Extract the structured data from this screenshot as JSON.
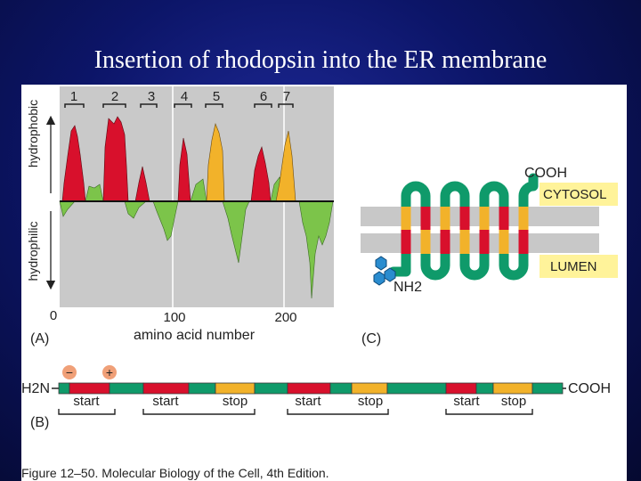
{
  "slide": {
    "title": "Insertion of rhodopsin into the ER membrane"
  },
  "panel_a": {
    "label": "(A)",
    "ylabel_top": "hydrophobic",
    "ylabel_bottom": "hydrophilic",
    "xlabel": "amino acid number",
    "x_ticks": [
      "0",
      "100",
      "200"
    ],
    "segment_labels": [
      "1",
      "2",
      "3",
      "4",
      "5",
      "6",
      "7"
    ]
  },
  "panel_b": {
    "label": "(B)",
    "left_terminus": "H2N",
    "right_terminus": "COOH",
    "minus": "−",
    "plus": "+",
    "bracket_labels": [
      {
        "left": "start",
        "right": ""
      },
      {
        "left": "start",
        "right": "stop"
      },
      {
        "left": "start",
        "right": "stop"
      },
      {
        "left": "start",
        "right": "stop"
      }
    ]
  },
  "panel_c": {
    "label": "(C)",
    "cooh": "COOH",
    "nh2": "NH2",
    "cytosol": "CYTOSOL",
    "lumen": "LUMEN"
  },
  "caption": "Figure 12–50. Molecular Biology of the Cell, 4th Edition.",
  "colors": {
    "start_segment": "#d8102c",
    "stop_segment": "#f2b22a",
    "hydrophilic": "#7cc44a",
    "chain": "#0f9a6a",
    "membrane": "#c8c8c8",
    "sugar": "#2a8ccf"
  }
}
